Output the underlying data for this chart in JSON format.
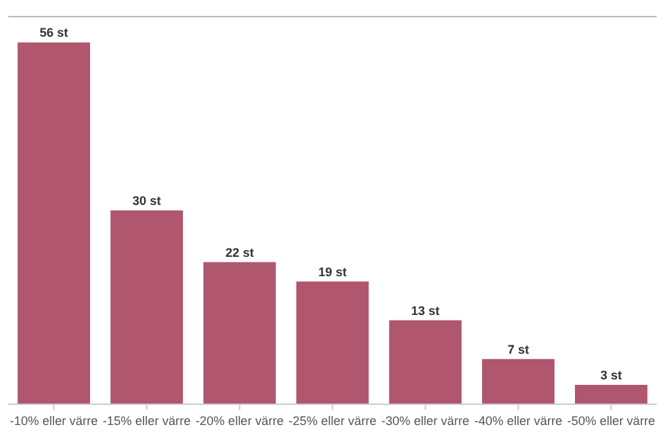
{
  "chart_data": {
    "type": "bar",
    "categories": [
      "-10% eller värre",
      "-15% eller värre",
      "-20% eller värre",
      "-25% eller värre",
      "-30% eller värre",
      "-40% eller värre",
      "-50% eller värre"
    ],
    "values": [
      56,
      30,
      22,
      19,
      13,
      7,
      3
    ],
    "color": "#b0566f",
    "value_labels": [
      "56 st",
      "30 st",
      "22 st",
      "19 st",
      "13 st",
      "7 st",
      "3 st"
    ],
    "ylim": [
      0,
      60
    ]
  }
}
